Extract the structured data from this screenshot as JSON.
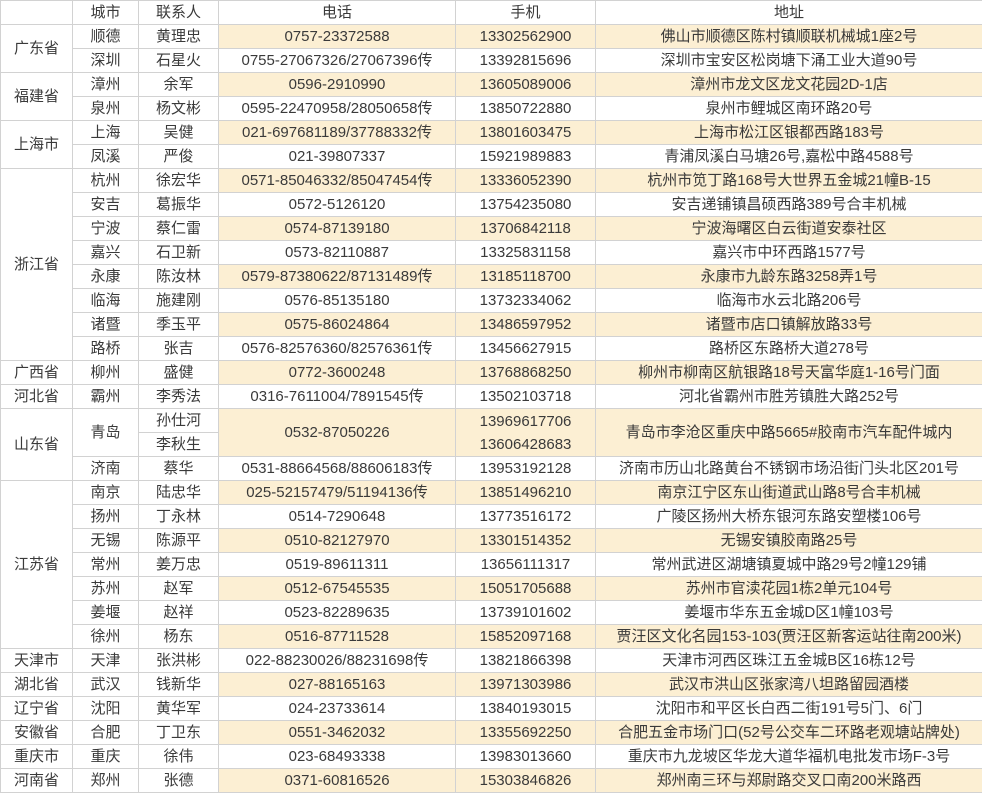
{
  "colors": {
    "row_highlight": "#fcefd3",
    "border": "#d2d2d2",
    "text": "#3a3a3a",
    "background": "#ffffff"
  },
  "table": {
    "headers": {
      "province": "",
      "city": "城市",
      "contact": "联系人",
      "phone": "电话",
      "mobile": "手机",
      "address": "地址"
    },
    "provinces": [
      {
        "name": "广东省",
        "cities": [
          {
            "city": "顺德",
            "contacts": [
              "黄理忠"
            ],
            "phone": "0757-23372588",
            "mobiles": [
              "13302562900"
            ],
            "address": "佛山市顺德区陈村镇顺联机械城1座2号"
          },
          {
            "city": "深圳",
            "contacts": [
              "石星火"
            ],
            "phone": "0755-27067326/27067396传",
            "mobiles": [
              "13392815696"
            ],
            "address": "深圳市宝安区松岗塘下涌工业大道90号"
          }
        ]
      },
      {
        "name": "福建省",
        "cities": [
          {
            "city": "漳州",
            "contacts": [
              "余军"
            ],
            "phone": "0596-2910990",
            "mobiles": [
              "13605089006"
            ],
            "address": "漳州市龙文区龙文花园2D-1店"
          },
          {
            "city": "泉州",
            "contacts": [
              "杨文彬"
            ],
            "phone": "0595-22470958/28050658传",
            "mobiles": [
              "13850722880"
            ],
            "address": "泉州市鲤城区南环路20号"
          }
        ]
      },
      {
        "name": "上海市",
        "cities": [
          {
            "city": "上海",
            "contacts": [
              "吴健"
            ],
            "phone": "021-697681189/37788332传",
            "mobiles": [
              "13801603475"
            ],
            "address": "上海市松江区银都西路183号"
          },
          {
            "city": "凤溪",
            "contacts": [
              "严俊"
            ],
            "phone": "021-39807337",
            "mobiles": [
              "15921989883"
            ],
            "address": "青浦凤溪白马塘26号,嘉松中路4588号"
          }
        ]
      },
      {
        "name": "浙江省",
        "cities": [
          {
            "city": "杭州",
            "contacts": [
              "徐宏华"
            ],
            "phone": "0571-85046332/85047454传",
            "mobiles": [
              "13336052390"
            ],
            "address": "杭州市笕丁路168号大世界五金城21幢B-15"
          },
          {
            "city": "安吉",
            "contacts": [
              "葛振华"
            ],
            "phone": "0572-5126120",
            "mobiles": [
              "13754235080"
            ],
            "address": "安吉递铺镇昌硕西路389号合丰机械"
          },
          {
            "city": "宁波",
            "contacts": [
              "蔡仁雷"
            ],
            "phone": "0574-87139180",
            "mobiles": [
              "13706842118"
            ],
            "address": "宁波海曙区白云街道安泰社区"
          },
          {
            "city": "嘉兴",
            "contacts": [
              "石卫新"
            ],
            "phone": "0573-82110887",
            "mobiles": [
              "13325831158"
            ],
            "address": "嘉兴市中环西路1577号"
          },
          {
            "city": "永康",
            "contacts": [
              "陈汝林"
            ],
            "phone": "0579-87380622/87131489传",
            "mobiles": [
              "13185118700"
            ],
            "address": "永康市九龄东路3258弄1号"
          },
          {
            "city": "临海",
            "contacts": [
              "施建刚"
            ],
            "phone": "0576-85135180",
            "mobiles": [
              "13732334062"
            ],
            "address": "临海市水云北路206号"
          },
          {
            "city": "诸暨",
            "contacts": [
              "季玉平"
            ],
            "phone": "0575-86024864",
            "mobiles": [
              "13486597952"
            ],
            "address": "诸暨市店口镇解放路33号"
          },
          {
            "city": "路桥",
            "contacts": [
              "张吉"
            ],
            "phone": "0576-82576360/82576361传",
            "mobiles": [
              "13456627915"
            ],
            "address": "路桥区东路桥大道278号"
          }
        ]
      },
      {
        "name": "广西省",
        "cities": [
          {
            "city": "柳州",
            "contacts": [
              "盛健"
            ],
            "phone": "0772-3600248",
            "mobiles": [
              "13768868250"
            ],
            "address": "柳州市柳南区航银路18号天富华庭1-16号门面"
          }
        ]
      },
      {
        "name": "河北省",
        "cities": [
          {
            "city": "霸州",
            "contacts": [
              "李秀法"
            ],
            "phone": "0316-7611004/7891545传",
            "mobiles": [
              "13502103718"
            ],
            "address": "河北省霸州市胜芳镇胜大路252号"
          }
        ]
      },
      {
        "name": "山东省",
        "cities": [
          {
            "city": "青岛",
            "contacts": [
              "孙仕河",
              "李秋生"
            ],
            "phone": "0532-87050226",
            "mobiles": [
              "13969617706",
              "13606428683"
            ],
            "address": "青岛市李沧区重庆中路5665#胶南市汽车配件城内"
          },
          {
            "city": "济南",
            "contacts": [
              "蔡华"
            ],
            "phone": "0531-88664568/88606183传",
            "mobiles": [
              "13953192128"
            ],
            "address": "济南市历山北路黄台不锈钢市场沿街门头北区201号"
          }
        ]
      },
      {
        "name": "江苏省",
        "cities": [
          {
            "city": "南京",
            "contacts": [
              "陆忠华"
            ],
            "phone": "025-52157479/51194136传",
            "mobiles": [
              "13851496210"
            ],
            "address": "南京江宁区东山街道武山路8号合丰机械"
          },
          {
            "city": "扬州",
            "contacts": [
              "丁永林"
            ],
            "phone": "0514-7290648",
            "mobiles": [
              "13773516172"
            ],
            "address": "广陵区扬州大桥东银河东路安塑楼106号"
          },
          {
            "city": "无锡",
            "contacts": [
              "陈源平"
            ],
            "phone": "0510-82127970",
            "mobiles": [
              "13301514352"
            ],
            "address": "无锡安镇胶南路25号"
          },
          {
            "city": "常州",
            "contacts": [
              "姜万忠"
            ],
            "phone": "0519-89611311",
            "mobiles": [
              "13656111317"
            ],
            "address": "常州武进区湖塘镇夏城中路29号2幢129铺"
          },
          {
            "city": "苏州",
            "contacts": [
              "赵军"
            ],
            "phone": "0512-67545535",
            "mobiles": [
              "15051705688"
            ],
            "address": "苏州市官渎花园1栋2单元104号"
          },
          {
            "city": "姜堰",
            "contacts": [
              "赵祥"
            ],
            "phone": "0523-82289635",
            "mobiles": [
              "13739101602"
            ],
            "address": "姜堰市华东五金城D区1幢103号"
          },
          {
            "city": "徐州",
            "contacts": [
              "杨东"
            ],
            "phone": "0516-87711528",
            "mobiles": [
              "15852097168"
            ],
            "address": "贾汪区文化名园153-103(贾汪区新客运站往南200米)"
          }
        ]
      },
      {
        "name": "天津市",
        "cities": [
          {
            "city": "天津",
            "contacts": [
              "张洪彬"
            ],
            "phone": "022-88230026/88231698传",
            "mobiles": [
              "13821866398"
            ],
            "address": "天津市河西区珠江五金城B区16栋12号"
          }
        ]
      },
      {
        "name": "湖北省",
        "cities": [
          {
            "city": "武汉",
            "contacts": [
              "钱新华"
            ],
            "phone": "027-88165163",
            "mobiles": [
              "13971303986"
            ],
            "address": "武汉市洪山区张家湾八坦路留园酒楼"
          }
        ]
      },
      {
        "name": "辽宁省",
        "cities": [
          {
            "city": "沈阳",
            "contacts": [
              "黄华军"
            ],
            "phone": "024-23733614",
            "mobiles": [
              "13840193015"
            ],
            "address": "沈阳市和平区长白西二街191号5门、6门"
          }
        ]
      },
      {
        "name": "安徽省",
        "cities": [
          {
            "city": "合肥",
            "contacts": [
              "丁卫东"
            ],
            "phone": "0551-3462032",
            "mobiles": [
              "13355692250"
            ],
            "address": "合肥五金市场门口(52号公交车二环路老观塘站牌处)"
          }
        ]
      },
      {
        "name": "重庆市",
        "cities": [
          {
            "city": "重庆",
            "contacts": [
              "徐伟"
            ],
            "phone": "023-68493338",
            "mobiles": [
              "13983013660"
            ],
            "address": "重庆市九龙坡区华龙大道华福机电批发市场F-3号"
          }
        ]
      },
      {
        "name": "河南省",
        "cities": [
          {
            "city": "郑州",
            "contacts": [
              "张德"
            ],
            "phone": "0371-60816526",
            "mobiles": [
              "15303846826"
            ],
            "address": "郑州南三环与郑尉路交叉口南200米路西"
          }
        ]
      }
    ]
  }
}
